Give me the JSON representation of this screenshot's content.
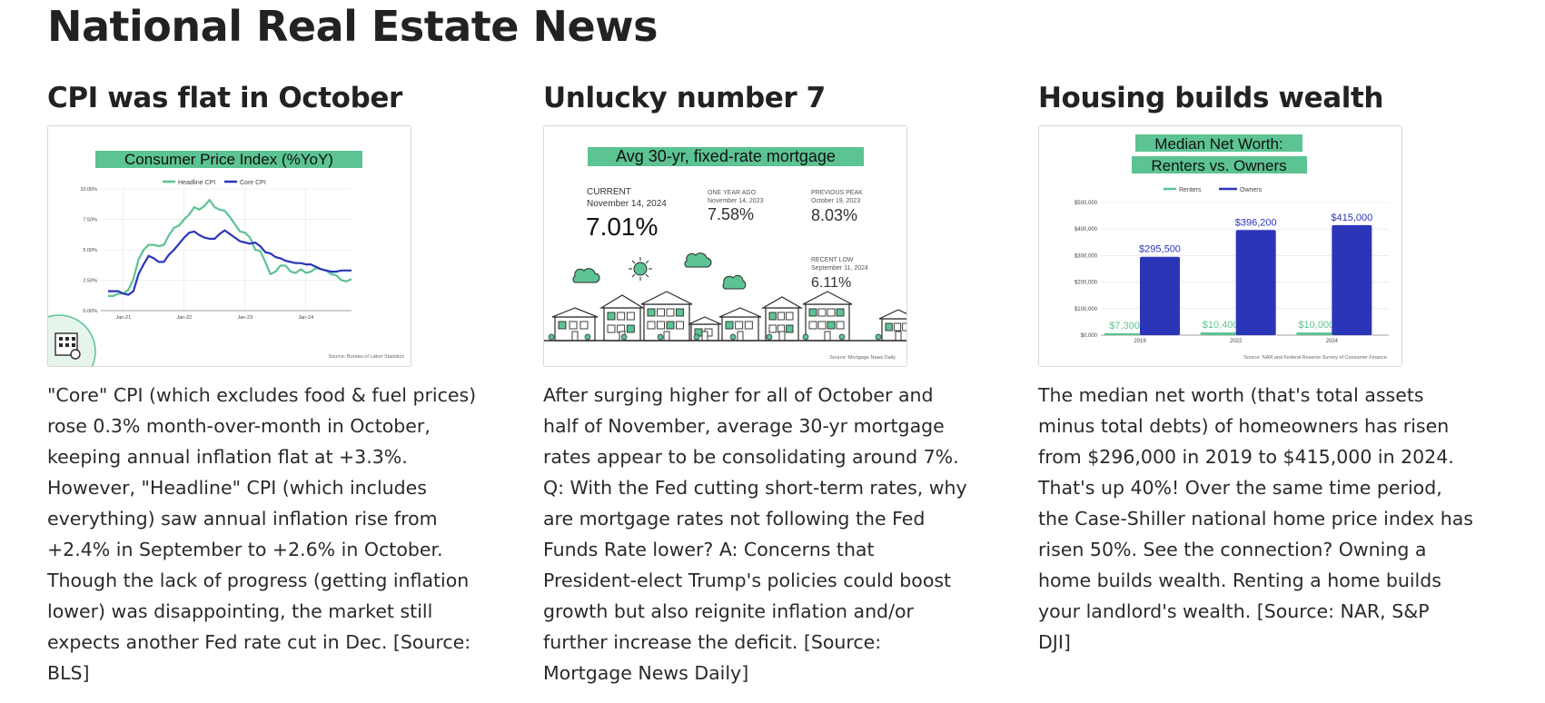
{
  "page": {
    "title": "National Real Estate News"
  },
  "colors": {
    "green": "#5cc392",
    "navy": "#2b35b8",
    "grid": "#e2e2e2",
    "ink": "#222222"
  },
  "articles": [
    {
      "heading": "CPI was flat in October",
      "body_lines": [
        "\"Core\" CPI (which excludes food & fuel prices)",
        "rose 0.3% month-over-month in October,",
        "keeping annual inflation flat at +3.3%.",
        "However, \"Headline\" CPI (which includes",
        "everything) saw annual inflation rise from",
        "+2.4% in September to +2.6% in October.",
        "Though the lack of progress (getting inflation",
        "lower) was disappointing, the market still",
        "expects another Fed rate cut in Dec. [Source:",
        "BLS]"
      ]
    },
    {
      "heading": "Unlucky number 7",
      "body_lines": [
        "After surging higher for all of October and",
        "half of November, average 30-yr mortgage",
        "rates appear to be consolidating around 7%.",
        "Q: With the Fed cutting short-term rates, why",
        "are mortgage rates not following the Fed",
        "Funds Rate lower? A: Concerns that",
        "President-elect Trump's policies could boost",
        "growth but also reignite inflation and/or",
        "further increase the deficit. [Source:",
        "Mortgage News Daily]"
      ]
    },
    {
      "heading": "Housing builds wealth",
      "body_lines": [
        "The median net worth (that's total assets",
        "minus total debts) of homeowners has risen",
        "from $296,000 in 2019 to $415,000 in 2024.",
        "That's up 40%! Over the same time period,",
        "the Case-Shiller national home price index has",
        "risen 50%. See the connection? Owning a",
        "home builds wealth. Renting a home builds",
        "your landlord's wealth. [Source: NAR, S&P",
        "DJI]"
      ]
    }
  ],
  "chart_data": [
    {
      "type": "line",
      "title": "Consumer Price Index (%YoY)",
      "x_ticks": [
        "Jan-21",
        "Jan-22",
        "Jan-23",
        "Jan-24"
      ],
      "y_ticks": [
        "0.00%",
        "2.50%",
        "5.00%",
        "7.50%",
        "10.00%"
      ],
      "ylim": [
        0,
        10
      ],
      "x_start": "2020-10",
      "series": [
        {
          "name": "Headline CPI",
          "color": "#5cc392",
          "values": [
            1.2,
            1.2,
            1.4,
            1.4,
            1.7,
            2.6,
            4.2,
            5.0,
            5.4,
            5.4,
            5.3,
            5.4,
            6.2,
            6.8,
            7.0,
            7.5,
            7.9,
            8.5,
            8.3,
            8.6,
            9.1,
            8.5,
            8.3,
            8.2,
            7.7,
            7.1,
            6.5,
            6.4,
            6.0,
            5.0,
            4.9,
            4.0,
            3.0,
            3.2,
            3.7,
            3.7,
            3.2,
            3.1,
            3.4,
            3.1,
            3.2,
            3.5,
            3.4,
            3.3,
            3.0,
            2.9,
            2.5,
            2.4,
            2.6
          ]
        },
        {
          "name": "Core CPI",
          "color": "#2b35b8",
          "values": [
            1.6,
            1.6,
            1.6,
            1.4,
            1.3,
            1.6,
            3.0,
            3.8,
            4.5,
            4.3,
            4.0,
            4.0,
            4.6,
            5.0,
            5.5,
            6.0,
            6.4,
            6.5,
            6.2,
            6.0,
            5.9,
            5.9,
            6.3,
            6.6,
            6.3,
            6.0,
            5.7,
            5.6,
            5.5,
            5.6,
            5.3,
            4.8,
            4.7,
            4.4,
            4.3,
            4.1,
            4.0,
            3.9,
            3.9,
            3.8,
            3.8,
            3.6,
            3.4,
            3.3,
            3.2,
            3.2,
            3.3,
            3.3,
            3.3
          ]
        }
      ],
      "source": "Source: Bureau of Labor Statistics"
    },
    {
      "type": "table",
      "title": "Avg 30-yr, fixed-rate mortgage",
      "stats": [
        {
          "label": "CURRENT",
          "date": "November 14, 2024",
          "value": "7.01%"
        },
        {
          "label": "ONE YEAR AGO",
          "date": "November 14, 2023",
          "value": "7.58%"
        },
        {
          "label": "PREVIOUS PEAK",
          "date": "October 19, 2023",
          "value": "8.03%"
        },
        {
          "label": "RECENT LOW",
          "date": "September 11, 2024",
          "value": "6.11%"
        }
      ],
      "source": "Source: Mortgage News Daily"
    },
    {
      "type": "bar",
      "title": "Median Net Worth:",
      "subtitle": "Renters vs. Owners",
      "categories": [
        "2019",
        "2022",
        "2024"
      ],
      "ylim": [
        0,
        500000
      ],
      "y_ticks": [
        "$0,000",
        "$100,000",
        "$200,000",
        "$300,000",
        "$400,000",
        "$500,000"
      ],
      "series": [
        {
          "name": "Renters",
          "color": "#5cc392",
          "values": [
            7300,
            10400,
            10000
          ],
          "labels": [
            "$7,300",
            "$10,400",
            "$10,000"
          ]
        },
        {
          "name": "Owners",
          "color": "#2b35b8",
          "values": [
            295500,
            396200,
            415000
          ],
          "labels": [
            "$295,500",
            "$396,200",
            "$415,000"
          ]
        }
      ],
      "source": "Source: NAR and Federal Reserve Survey of Consumer Finance"
    }
  ]
}
